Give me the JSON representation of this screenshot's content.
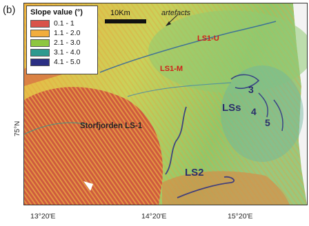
{
  "panel_label": "(b)",
  "legend": {
    "title": "Slope value (°)",
    "items": [
      {
        "label": "0.1 - 1",
        "color": "#d9534a"
      },
      {
        "label": "1.1 - 2.0",
        "color": "#f2ad3d"
      },
      {
        "label": "2.1 - 3.0",
        "color": "#8dc63f"
      },
      {
        "label": "3.1 - 4.0",
        "color": "#2e9a8f"
      },
      {
        "label": "4.1 - 5.0",
        "color": "#2b2f84"
      }
    ]
  },
  "scale_bar": {
    "label": "10Km"
  },
  "annotations": {
    "artefacts": "artefacts"
  },
  "features": {
    "ls1_u": "LS1-U",
    "ls1_m": "LS1-M",
    "ls1": "Storfjorden LS-1",
    "ls2": "LS2",
    "lss": "LSs",
    "n3": "3",
    "n4": "4",
    "n5": "5"
  },
  "coordinates": {
    "lon1": "13°20'E",
    "lon2": "14°20'E",
    "lon3": "15°20'E",
    "lat1": "75°N"
  },
  "colors": {
    "gentle": "#d9534a",
    "low": "#f2ad3d",
    "mid": "#8dc63f",
    "high": "#2e9a8f",
    "steep": "#2b2f84"
  }
}
